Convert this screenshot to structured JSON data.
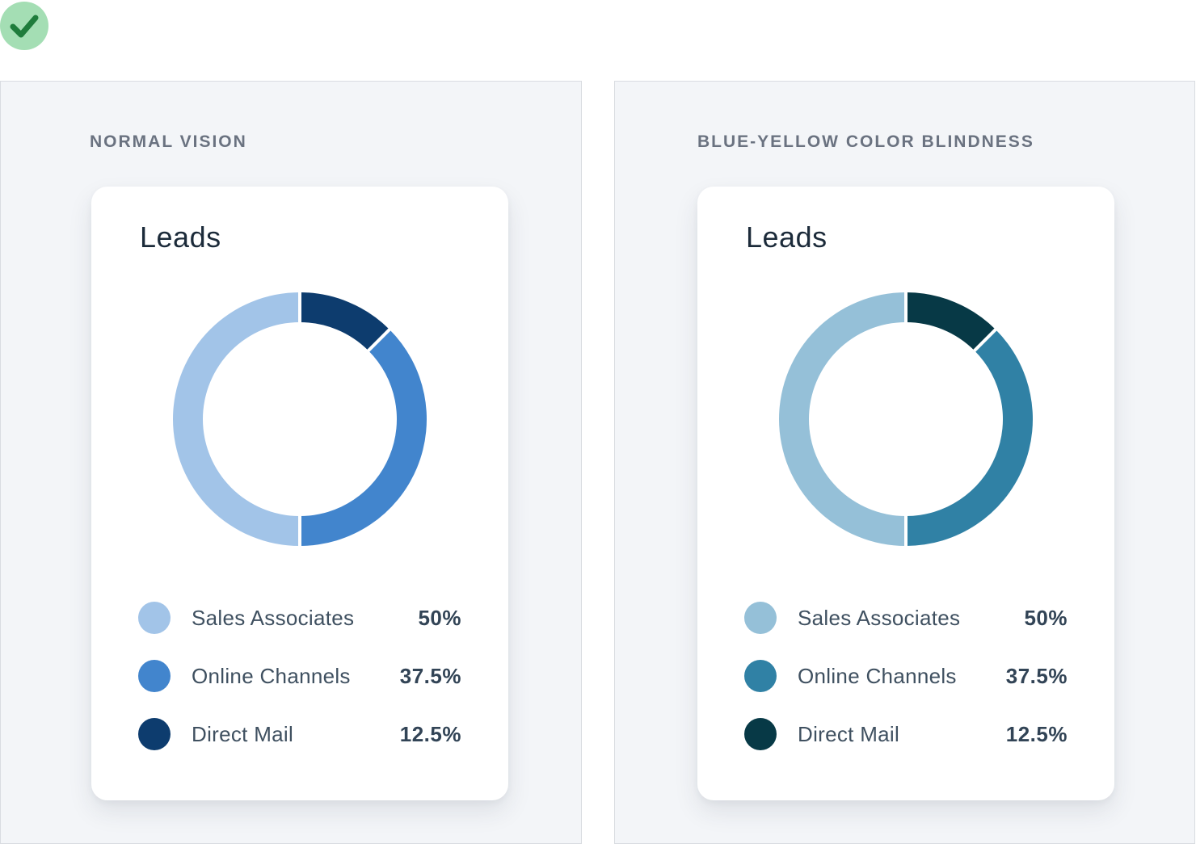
{
  "check_badge": {
    "icon": "checkmark-icon",
    "circle_color": "#a4deb4",
    "check_color": "#1f7c3c"
  },
  "panels": [
    {
      "label": "NORMAL VISION",
      "card_title": "Leads",
      "legend": [
        {
          "name": "Sales Associates",
          "pct": "50%",
          "color": "#a2c4e8"
        },
        {
          "name": "Online Channels",
          "pct": "37.5%",
          "color": "#4285cd"
        },
        {
          "name": "Direct Mail",
          "pct": "12.5%",
          "color": "#0d3c6e"
        }
      ]
    },
    {
      "label": "BLUE-YELLOW COLOR BLINDNESS",
      "card_title": "Leads",
      "legend": [
        {
          "name": "Sales Associates",
          "pct": "50%",
          "color": "#95c0d8"
        },
        {
          "name": "Online Channels",
          "pct": "37.5%",
          "color": "#3081a5"
        },
        {
          "name": "Direct Mail",
          "pct": "12.5%",
          "color": "#073946"
        }
      ]
    }
  ],
  "chart_data": [
    {
      "type": "pie",
      "variant": "donut",
      "title": "Leads",
      "categories": [
        "Sales Associates",
        "Online Channels",
        "Direct Mail"
      ],
      "values": [
        50,
        37.5,
        12.5
      ],
      "unit": "%",
      "colors": [
        "#a2c4e8",
        "#4285cd",
        "#0d3c6e"
      ],
      "legend_position": "bottom",
      "start_angle_deg": 0,
      "direction": "counterclockwise",
      "hole_ratio": 0.76,
      "slice_gap": true,
      "context_label": "NORMAL VISION"
    },
    {
      "type": "pie",
      "variant": "donut",
      "title": "Leads",
      "categories": [
        "Sales Associates",
        "Online Channels",
        "Direct Mail"
      ],
      "values": [
        50,
        37.5,
        12.5
      ],
      "unit": "%",
      "colors": [
        "#95c0d8",
        "#3081a5",
        "#073946"
      ],
      "legend_position": "bottom",
      "start_angle_deg": 0,
      "direction": "counterclockwise",
      "hole_ratio": 0.76,
      "slice_gap": true,
      "context_label": "BLUE-YELLOW COLOR BLINDNESS"
    }
  ]
}
